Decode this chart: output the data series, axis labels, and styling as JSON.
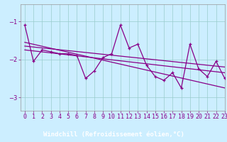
{
  "x": [
    0,
    1,
    2,
    3,
    4,
    5,
    6,
    7,
    8,
    9,
    10,
    11,
    12,
    13,
    14,
    15,
    16,
    17,
    18,
    19,
    20,
    21,
    22,
    23
  ],
  "y_main": [
    -1.1,
    -2.05,
    -1.75,
    -1.8,
    -1.85,
    -1.85,
    -1.9,
    -2.5,
    -2.3,
    -1.95,
    -1.85,
    -1.1,
    -1.7,
    -1.6,
    -2.15,
    -2.45,
    -2.55,
    -2.35,
    -2.75,
    -1.6,
    -2.25,
    -2.45,
    -2.05,
    -2.5
  ],
  "trend1_x": [
    0,
    23
  ],
  "trend1_y": [
    -1.65,
    -2.2
  ],
  "trend2_x": [
    0,
    23
  ],
  "trend2_y": [
    -1.75,
    -2.35
  ],
  "trend3_x": [
    0,
    23
  ],
  "trend3_y": [
    -1.55,
    -2.75
  ],
  "color": "#880088",
  "bg_color": "#cceeff",
  "grid_color": "#99cccc",
  "xlabel": "Windchill (Refroidissement éolien,°C)",
  "xlabel_bg": "#7700aa",
  "ylim": [
    -3.35,
    -0.55
  ],
  "xlim": [
    -0.5,
    23
  ],
  "yticks": [
    -3,
    -2,
    -1
  ],
  "xticks": [
    0,
    1,
    2,
    3,
    4,
    5,
    6,
    7,
    8,
    9,
    10,
    11,
    12,
    13,
    14,
    15,
    16,
    17,
    18,
    19,
    20,
    21,
    22,
    23
  ],
  "tick_fontsize": 6,
  "label_fontsize": 6.5
}
